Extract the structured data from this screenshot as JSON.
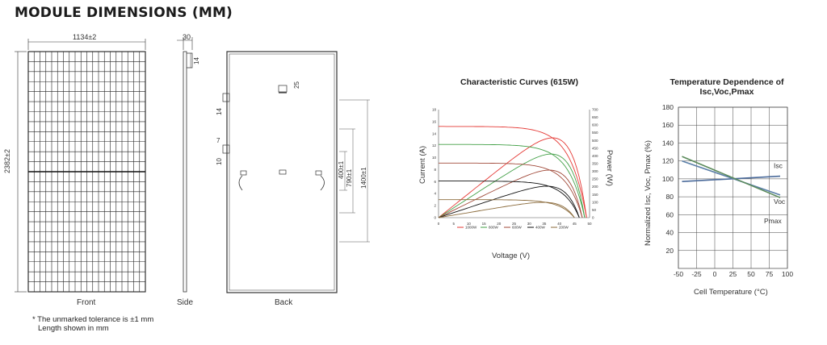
{
  "header": {
    "title": "MODULE DIMENSIONS (MM)"
  },
  "front": {
    "width_dim": "1134±2",
    "height_dim": "2382±2",
    "caption": "Front"
  },
  "side": {
    "thickness_dim": "30",
    "small_dim": "14",
    "caption": "Side"
  },
  "back": {
    "caption": "Back",
    "dim_a": "400±1",
    "dim_b": "790±1",
    "dim_c": "1400±1",
    "dim_d": "14",
    "dim_e": "7",
    "dim_f": "10",
    "dim_g": "25"
  },
  "note": {
    "line1": "* The unmarked tolerance is ±1 mm",
    "line2": "Length shown in mm"
  },
  "chart_data": [
    {
      "type": "line",
      "title": "Characteristic Curves (615W)",
      "xlabel": "Voltage (V)",
      "ylabel": "Current (A)",
      "y2label": "Power (W)",
      "xlim": [
        0,
        50
      ],
      "ylim": [
        0,
        18
      ],
      "y2lim": [
        0,
        700
      ],
      "xticks": [
        "0",
        "5",
        "10",
        "15",
        "20",
        "25",
        "30",
        "35",
        "40",
        "45",
        "50"
      ],
      "yticks": [
        "0",
        "2",
        "4",
        "6",
        "8",
        "10",
        "12",
        "14",
        "16",
        "18"
      ],
      "y2ticks": [
        "0",
        "50",
        "100",
        "150",
        "200",
        "250",
        "300",
        "350",
        "400",
        "450",
        "500",
        "550",
        "600",
        "650",
        "700"
      ],
      "series": [
        {
          "name": "1000W",
          "color": "#e53935",
          "isc": 15.2,
          "voc": 49.0,
          "pmax": 615
        },
        {
          "name": "800W",
          "color": "#43a047",
          "isc": 12.2,
          "voc": 48.4,
          "pmax": 490
        },
        {
          "name": "600W",
          "color": "#a14a3a",
          "isc": 9.1,
          "voc": 47.6,
          "pmax": 366
        },
        {
          "name": "400W",
          "color": "#111111",
          "isc": 6.1,
          "voc": 46.6,
          "pmax": 242
        },
        {
          "name": "200W",
          "color": "#8a6a3a",
          "isc": 3.0,
          "voc": 45.0,
          "pmax": 118
        }
      ]
    },
    {
      "type": "line",
      "title": "Temperature Dependence of Isc,Voc,Pmax",
      "xlabel": "Cell Temperature  (°C)",
      "ylabel": "Normalized Isc, Voc, Pmax (%)",
      "xlim": [
        -50,
        100
      ],
      "ylim": [
        0,
        180
      ],
      "xticks": [
        "-50",
        "-25",
        "0",
        "25",
        "50",
        "75",
        "100"
      ],
      "yticks": [
        "20",
        "40",
        "60",
        "80",
        "100",
        "120",
        "140",
        "160",
        "180"
      ],
      "series": [
        {
          "name": "Isc",
          "color": "#4a6a9a",
          "x": [
            -45,
            90
          ],
          "y": [
            97,
            103
          ]
        },
        {
          "name": "Voc",
          "color": "#5b7fa8",
          "x": [
            -45,
            90
          ],
          "y": [
            120,
            82
          ]
        },
        {
          "name": "Pmax",
          "color": "#5a8a5a",
          "x": [
            -45,
            90
          ],
          "y": [
            125,
            79
          ]
        }
      ]
    }
  ]
}
